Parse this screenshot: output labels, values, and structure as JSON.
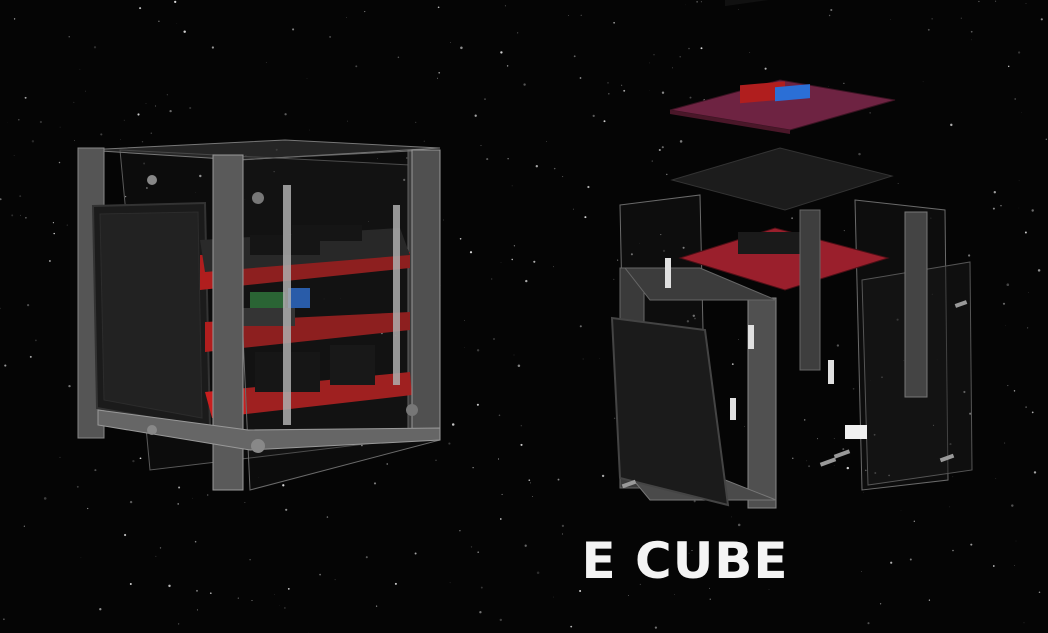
{
  "title": "E CUBE",
  "colors": {
    "background": "#050505",
    "title": "#f4f4f4",
    "frame": "#4a4a4a",
    "frame_light": "#8a8a8a",
    "board_red": "#b01e1e",
    "board_purple": "#6e2342",
    "board_dark": "#1c1c1c",
    "header_black": "#111111",
    "solar_panel": "#1b1b1b",
    "connector_blue": "#2b6fd6"
  }
}
